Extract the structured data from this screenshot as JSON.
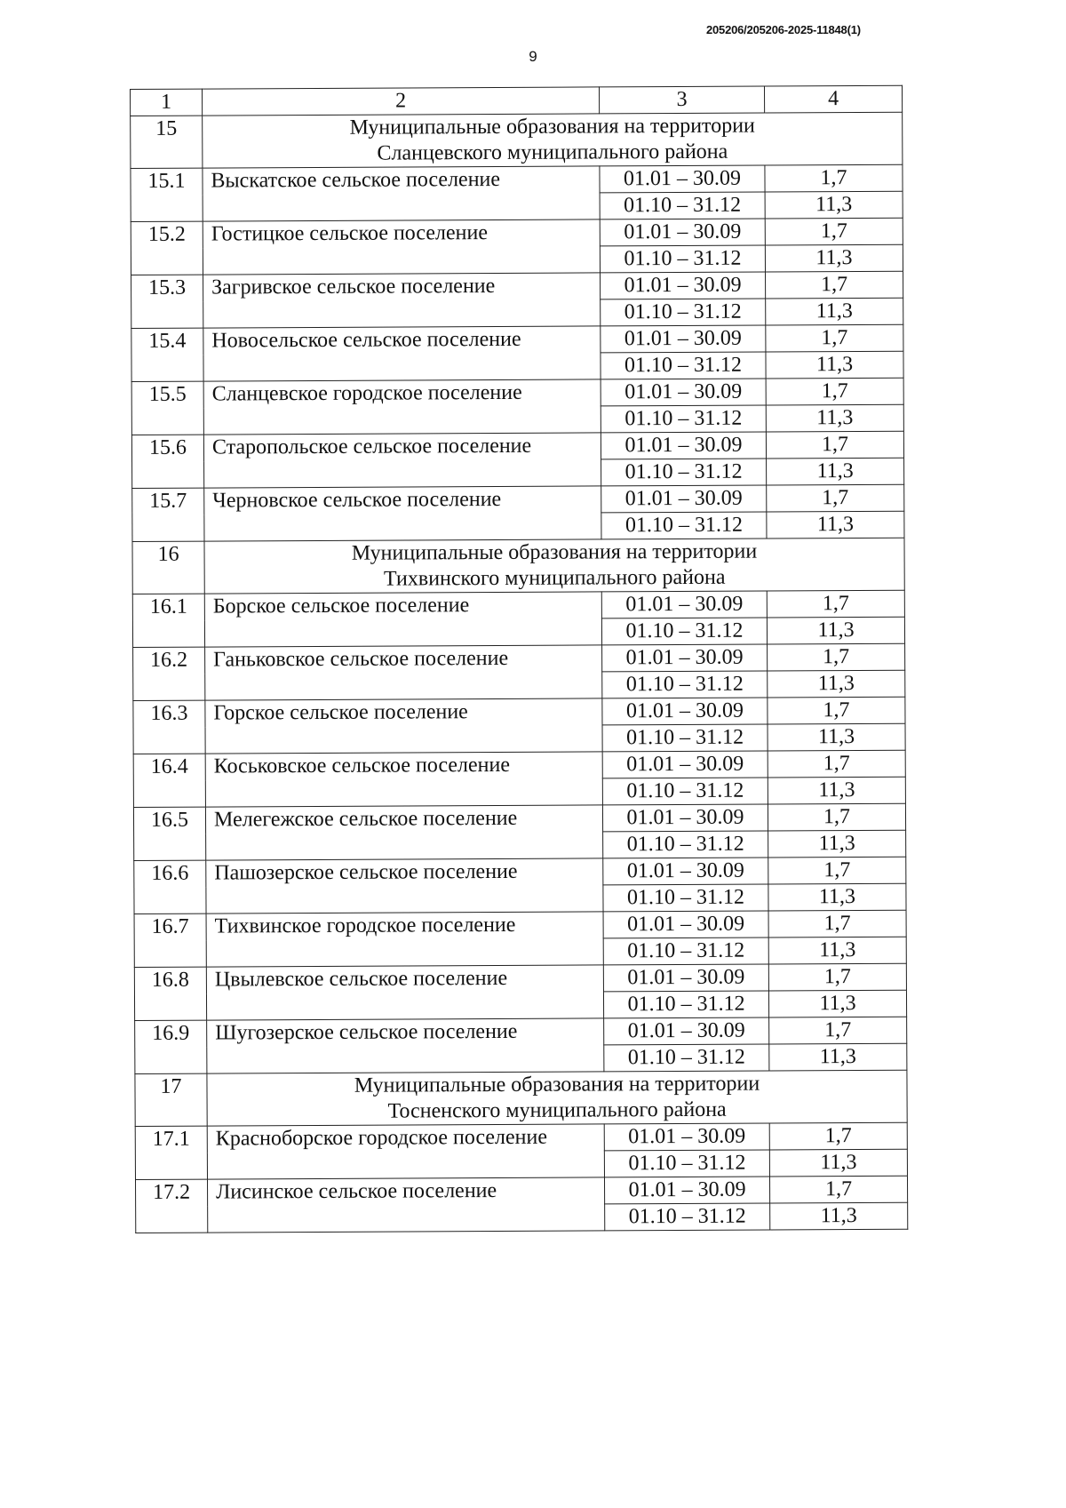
{
  "document_id": "205206/205206-2025-11848(1)",
  "page_number": "9",
  "table": {
    "header": [
      "1",
      "2",
      "3",
      "4"
    ],
    "sections": [
      {
        "number": "15",
        "title_line1": "Муниципальные образования на территории",
        "title_line2": "Сланцевского муниципального района",
        "rows": [
          {
            "number": "15.1",
            "name": "Выскатское сельское поселение"
          },
          {
            "number": "15.2",
            "name": "Гостицкое сельское поселение"
          },
          {
            "number": "15.3",
            "name": "Загривское сельское поселение"
          },
          {
            "number": "15.4",
            "name": "Новосельское сельское поселение"
          },
          {
            "number": "15.5",
            "name": "Сланцевское городское поселение"
          },
          {
            "number": "15.6",
            "name": "Старопольское сельское поселение"
          },
          {
            "number": "15.7",
            "name": "Черновское сельское поселение"
          }
        ]
      },
      {
        "number": "16",
        "title_line1": "Муниципальные образования на территории",
        "title_line2": "Тихвинского муниципального района",
        "rows": [
          {
            "number": "16.1",
            "name": "Борское сельское поселение"
          },
          {
            "number": "16.2",
            "name": "Ганьковское сельское поселение"
          },
          {
            "number": "16.3",
            "name": "Горское сельское поселение"
          },
          {
            "number": "16.4",
            "name": "Коськовское сельское поселение"
          },
          {
            "number": "16.5",
            "name": "Мелегежское сельское поселение"
          },
          {
            "number": "16.6",
            "name": "Пашозерское сельское поселение"
          },
          {
            "number": "16.7",
            "name": "Тихвинское городское поселение"
          },
          {
            "number": "16.8",
            "name": "Цвылевское сельское поселение"
          },
          {
            "number": "16.9",
            "name": "Шугозерское сельское поселение"
          }
        ]
      },
      {
        "number": "17",
        "title_line1": "Муниципальные образования на территории",
        "title_line2": "Тосненского муниципального района",
        "rows": [
          {
            "number": "17.1",
            "name": "Красноборское городское поселение"
          },
          {
            "number": "17.2",
            "name": "Лисинское сельское поселение"
          }
        ]
      }
    ],
    "periods": [
      {
        "period": "01.01 – 30.09",
        "value": "1,7"
      },
      {
        "period": "01.10 – 31.12",
        "value": "11,3"
      }
    ]
  }
}
